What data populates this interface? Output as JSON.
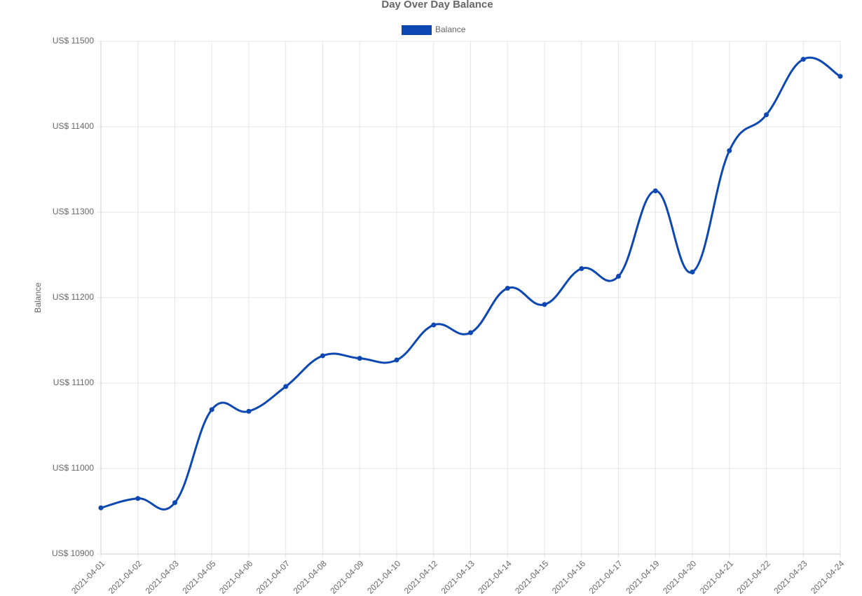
{
  "chart_data": {
    "type": "line",
    "title": "Day Over Day Balance",
    "y_label": "Balance",
    "categories": [
      "2021-04-01",
      "2021-04-02",
      "2021-04-03",
      "2021-04-05",
      "2021-04-06",
      "2021-04-07",
      "2021-04-08",
      "2021-04-09",
      "2021-04-10",
      "2021-04-12",
      "2021-04-13",
      "2021-04-14",
      "2021-04-15",
      "2021-04-16",
      "2021-04-17",
      "2021-04-19",
      "2021-04-20",
      "2021-04-21",
      "2021-04-22",
      "2021-04-23",
      "2021-04-24"
    ],
    "series": [
      {
        "name": "Balance",
        "color": "#0d47b1",
        "values": [
          10954,
          10965,
          10960,
          11069,
          11067,
          11096,
          11132,
          11129,
          11127,
          11168,
          11159,
          11211,
          11192,
          11234,
          11225,
          11325,
          11230,
          11372,
          11414,
          11479,
          11459
        ]
      }
    ],
    "ylim": [
      10900,
      11500
    ],
    "yticks": [
      {
        "value": 10900,
        "label": "US$ 10900"
      },
      {
        "value": 11000,
        "label": "US$ 11000"
      },
      {
        "value": 11100,
        "label": "US$ 11100"
      },
      {
        "value": 11200,
        "label": "US$ 11200"
      },
      {
        "value": 11300,
        "label": "US$ 11300"
      },
      {
        "value": 11400,
        "label": "US$ 11400"
      },
      {
        "value": 11500,
        "label": "US$ 11500"
      }
    ],
    "grid": true,
    "legend": "top"
  }
}
